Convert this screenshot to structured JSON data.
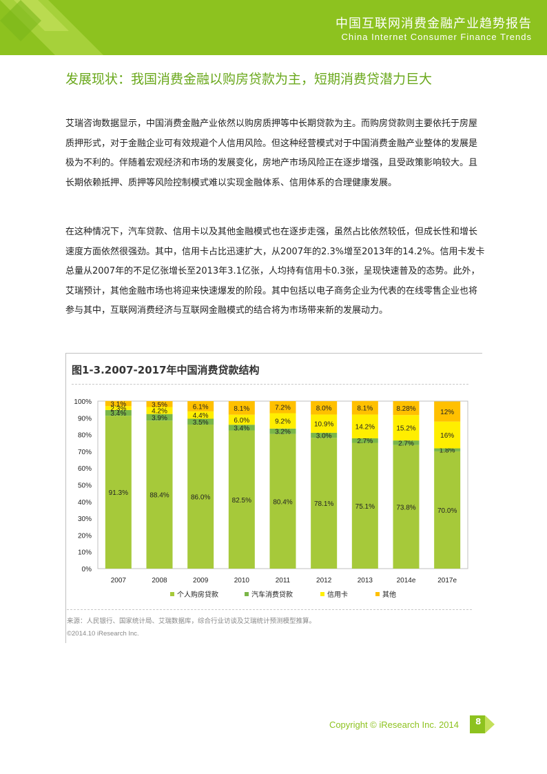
{
  "header": {
    "title": "中国互联网消费金融产业趋势报告",
    "subtitle": "China Internet Consumer Finance Trends"
  },
  "page_title": "发展现状：我国消费金融以购房贷款为主，短期消费贷潜力巨大",
  "paragraphs": [
    "艾瑞咨询数据显示，中国消费金融产业依然以购房质押等中长期贷款为主。而购房贷款则主要依托于房屋质押形式，对于金融企业可有效规避个人信用风险。但这种经营模式对于中国消费金融产业整体的发展是极为不利的。伴随着宏观经济和市场的发展变化，房地产市场风险正在逐步增强，且受政策影响较大。且长期依赖抵押、质押等风险控制模式难以实现金融体系、信用体系的合理健康发展。",
    "在这种情况下，汽车贷款、信用卡以及其他金融模式也在逐步走强，虽然占比依然较低，但成长性和增长速度方面依然很强劲。其中，信用卡占比迅速扩大，从2007年的2.3%增至2013年的14.2%。信用卡发卡总量从2007年的不足亿张增长至2013年3.1亿张，人均持有信用卡0.3张，呈现快速普及的态势。此外，艾瑞预计，其他金融市场也将迎来快速爆发的阶段。其中包括以电子商务企业为代表的在线零售企业也将参与其中，互联网消费经济与互联网金融模式的结合将为市场带来新的发展动力。"
  ],
  "chart_title": "图1-3.2007-2017年中国消费贷款结构",
  "source_note": "来源：人民银行、国家统计局、艾瑞数据库，综合行业访谈及艾瑞统计预测模型推算。",
  "copyright_note": "©2014.10 iResearch Inc.",
  "footer": {
    "copyright": "Copyright © iResearch Inc. 2014",
    "page_number": "8"
  },
  "colors": {
    "brand_green": "#8dc21f",
    "series": [
      "#a6c93a",
      "#7ab648",
      "#ffee00",
      "#ffc000"
    ]
  },
  "chart_data": {
    "type": "bar",
    "stacked": true,
    "categories": [
      "2007",
      "2008",
      "2009",
      "2010",
      "2011",
      "2012",
      "2013",
      "2014e",
      "2017e"
    ],
    "y_ticks": [
      "0%",
      "10%",
      "20%",
      "30%",
      "40%",
      "50%",
      "60%",
      "70%",
      "80%",
      "90%",
      "100%"
    ],
    "ylim": [
      0,
      100
    ],
    "series": [
      {
        "name": "个人购房贷款",
        "values": [
          91.3,
          88.4,
          86.0,
          82.5,
          80.4,
          78.1,
          75.1,
          73.8,
          70.0
        ],
        "labels": [
          "91.3%",
          "88.4%",
          "86.0%",
          "82.5%",
          "80.4%",
          "78.1%",
          "75.1%",
          "73.8%",
          "70.0%"
        ]
      },
      {
        "name": "汽车消费贷款",
        "values": [
          3.4,
          3.9,
          3.5,
          3.4,
          3.2,
          3.0,
          2.7,
          2.7,
          1.8
        ],
        "labels": [
          "3.4%",
          "3.9%",
          "3.5%",
          "3.4%",
          "3.2%",
          "3.0%",
          "2.7%",
          "2.7%",
          "1.8%"
        ]
      },
      {
        "name": "信用卡",
        "values": [
          2.3,
          4.2,
          4.4,
          6.0,
          9.2,
          10.9,
          14.2,
          15.2,
          16
        ],
        "labels": [
          "2.3%",
          "4.2%",
          "4.4%",
          "6.0%",
          "9.2%",
          "10.9%",
          "14.2%",
          "15.2%",
          "16%"
        ]
      },
      {
        "name": "其他",
        "values": [
          3.1,
          3.5,
          6.1,
          8.1,
          7.2,
          8.0,
          8.1,
          8.28,
          12
        ],
        "labels": [
          "3.1%",
          "3.5%",
          "6.1%",
          "8.1%",
          "7.2%",
          "8.0%",
          "8.1%",
          "8.28%",
          "12%"
        ]
      }
    ],
    "legend_position": "bottom",
    "grid": false
  }
}
